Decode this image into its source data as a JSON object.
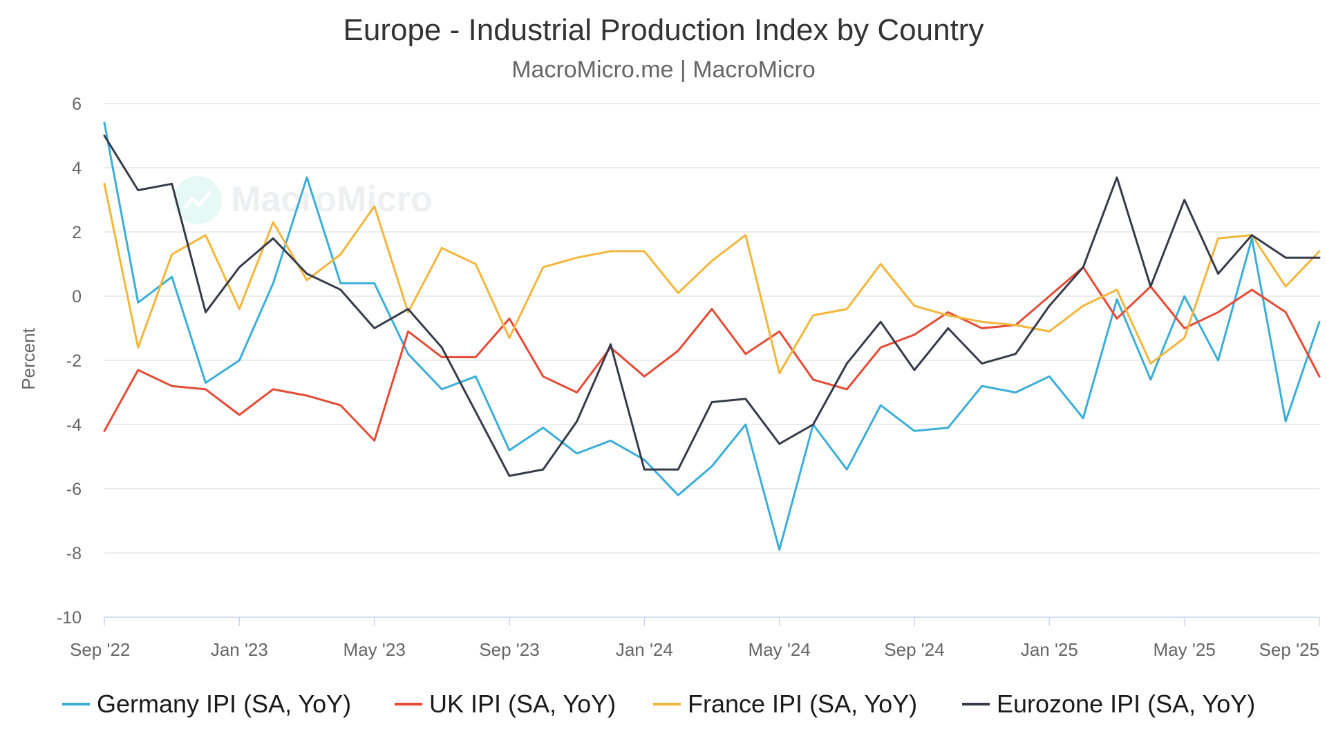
{
  "chart_data": {
    "type": "line",
    "title": "Europe - Industrial Production Index by Country",
    "subtitle": "MacroMicro.me | MacroMicro",
    "watermark": "MacroMicro",
    "xlabel": "",
    "ylabel": "Percent",
    "ylim": [
      -10,
      6
    ],
    "y_ticks": [
      "6",
      "4",
      "2",
      "0",
      "-2",
      "-4",
      "-6",
      "-8",
      "-10"
    ],
    "x_ticks": [
      {
        "label": "Sep '22",
        "index": 0
      },
      {
        "label": "Jan '23",
        "index": 4
      },
      {
        "label": "May '23",
        "index": 8
      },
      {
        "label": "Sep '23",
        "index": 12
      },
      {
        "label": "Jan '24",
        "index": 16
      },
      {
        "label": "May '24",
        "index": 20
      },
      {
        "label": "Sep '24",
        "index": 24
      },
      {
        "label": "Jan '25",
        "index": 28
      },
      {
        "label": "May '25",
        "index": 32
      },
      {
        "label": "Sep '25",
        "index": 36
      }
    ],
    "x": [
      "2022-09",
      "2022-10",
      "2022-11",
      "2022-12",
      "2023-01",
      "2023-02",
      "2023-03",
      "2023-04",
      "2023-05",
      "2023-06",
      "2023-07",
      "2023-08",
      "2023-09",
      "2023-10",
      "2023-11",
      "2023-12",
      "2024-01",
      "2024-02",
      "2024-03",
      "2024-04",
      "2024-05",
      "2024-06",
      "2024-07",
      "2024-08",
      "2024-09",
      "2024-10",
      "2024-11",
      "2024-12",
      "2025-01",
      "2025-02",
      "2025-03",
      "2025-04",
      "2025-05",
      "2025-06",
      "2025-07",
      "2025-08",
      "2025-09"
    ],
    "grid": true,
    "legend_position": "bottom",
    "series": [
      {
        "name": "Germany IPI (SA, YoY)",
        "color": "#3aaed8",
        "values": [
          5.4,
          -0.2,
          0.6,
          -2.7,
          -2.0,
          0.4,
          3.7,
          0.4,
          0.4,
          -1.8,
          -2.9,
          -2.5,
          -4.8,
          -4.1,
          -4.9,
          -4.5,
          -5.1,
          -6.2,
          -5.3,
          -4.0,
          -7.9,
          -4.0,
          -5.4,
          -3.4,
          -4.2,
          -4.1,
          -2.8,
          -3.0,
          -2.5,
          -3.8,
          -0.1,
          -2.6,
          0.0,
          -2.0,
          1.8,
          -3.9,
          -0.8
        ]
      },
      {
        "name": "UK IPI (SA, YoY)",
        "color": "#e54b35",
        "values": [
          -4.2,
          -2.3,
          -2.8,
          -2.9,
          -3.7,
          -2.9,
          -3.1,
          -3.4,
          -4.5,
          -1.1,
          -1.9,
          -1.9,
          -0.7,
          -2.5,
          -3.0,
          -1.6,
          -2.5,
          -1.7,
          -0.4,
          -1.8,
          -1.1,
          -2.6,
          -2.9,
          -1.6,
          -1.2,
          -0.5,
          -1.0,
          -0.9,
          0.0,
          0.9,
          -0.7,
          0.3,
          -1.0,
          -0.5,
          0.2,
          -0.5,
          -2.5
        ]
      },
      {
        "name": "France IPI (SA, YoY)",
        "color": "#f3b63b",
        "values": [
          3.5,
          -1.6,
          1.3,
          1.9,
          -0.4,
          2.3,
          0.5,
          1.3,
          2.8,
          -0.5,
          1.5,
          1.0,
          -1.3,
          0.9,
          1.2,
          1.4,
          1.4,
          0.1,
          1.1,
          1.9,
          -2.4,
          -0.6,
          -0.4,
          1.0,
          -0.3,
          -0.6,
          -0.8,
          -0.9,
          -1.1,
          -0.3,
          0.2,
          -2.1,
          -1.3,
          1.8,
          1.9,
          0.3,
          1.4
        ]
      },
      {
        "name": "Eurozone IPI (SA, YoY)",
        "color": "#363b4a",
        "values": [
          5.0,
          3.3,
          3.5,
          -0.5,
          0.9,
          1.8,
          0.7,
          0.2,
          -1.0,
          -0.4,
          -1.6,
          -3.6,
          -5.6,
          -5.4,
          -3.9,
          -1.5,
          -5.4,
          -5.4,
          -3.3,
          -3.2,
          -4.6,
          -4.0,
          -2.1,
          -0.8,
          -2.3,
          -1.0,
          -2.1,
          -1.8,
          -0.3,
          0.9,
          3.7,
          0.3,
          3.0,
          0.7,
          1.9,
          1.2,
          1.2
        ]
      }
    ]
  }
}
